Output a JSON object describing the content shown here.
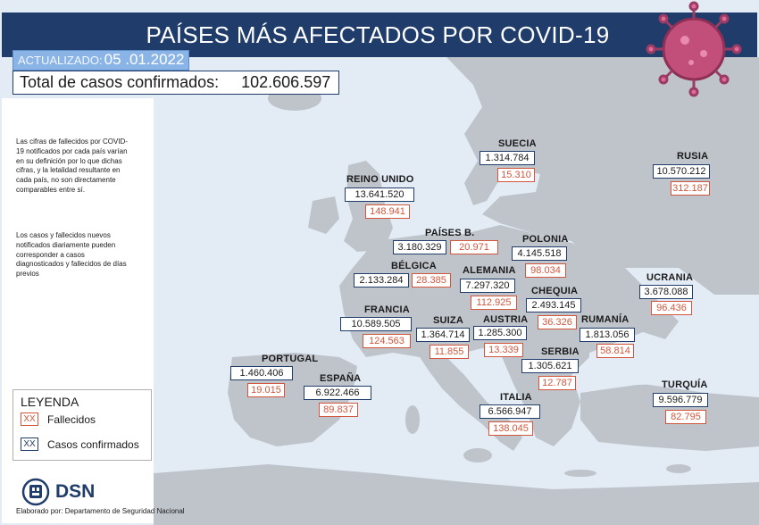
{
  "header": {
    "title": "PAÍSES MÁS AFECTADOS POR COVID-19",
    "updated_label": "ACTUALIZADO:",
    "updated_date": "05 .01.2022",
    "total_label": "Total de casos confirmados:",
    "total_value": "102.606.597"
  },
  "notes": {
    "note1": "Las cifras de fallecidos por COVID-19 notificados por cada país varían en su definición por lo que dichas cifras, y la letalidad resultante en cada país, no son directamente comparables entre sí.",
    "note2": "Los casos y fallecidos nuevos notificados diariamente pueden corresponder a casos diagnosticados y fallecidos de días previos"
  },
  "legend": {
    "title": "LEYENDA",
    "swatch_text": "XX",
    "deaths_label": "Fallecidos",
    "cases_label": "Casos confirmados"
  },
  "footer": {
    "logo_text": "DSN",
    "credit": "Elaborado por: Departamento de Seguridad Nacional"
  },
  "colors": {
    "header_bg": "#1f3c6b",
    "deaths": "#d2563c",
    "cases_border": "#1f3c6b",
    "sea": "#e3ebf5",
    "land": "#bfc4cb",
    "virus": "#c24f7a"
  },
  "countries": {
    "reino_unido": {
      "name": "REINO UNIDO",
      "cases": "13.641.520",
      "deaths": "148.941"
    },
    "suecia": {
      "name": "SUECIA",
      "cases": "1.314.784",
      "deaths": "15.310"
    },
    "rusia": {
      "name": "RUSIA",
      "cases": "10.570.212",
      "deaths": "312.187"
    },
    "paises_bajos": {
      "name": "PAÍSES B.",
      "cases": "3.180.329",
      "deaths": "20.971"
    },
    "polonia": {
      "name": "POLONIA",
      "cases": "4.145.518",
      "deaths": "98.034"
    },
    "belgica": {
      "name": "BÉLGICA",
      "cases": "2.133.284",
      "deaths": "28.385"
    },
    "alemania": {
      "name": "ALEMANIA",
      "cases": "7.297.320",
      "deaths": "112.925"
    },
    "chequia": {
      "name": "CHEQUIA",
      "cases": "2.493.145",
      "deaths": "36.326"
    },
    "ucrania": {
      "name": "UCRANIA",
      "cases": "3.678.088",
      "deaths": "96.436"
    },
    "francia": {
      "name": "FRANCIA",
      "cases": "10.589.505",
      "deaths": "124.563"
    },
    "suiza": {
      "name": "SUIZA",
      "cases": "1.364.714",
      "deaths": "11.855"
    },
    "austria": {
      "name": "AUSTRIA",
      "cases": "1.285.300",
      "deaths": "13.339"
    },
    "rumania": {
      "name": "RUMANÍA",
      "cases": "1.813.056",
      "deaths": "58.814"
    },
    "portugal": {
      "name": "PORTUGAL",
      "cases": "1.460.406",
      "deaths": "19.015"
    },
    "espana": {
      "name": "ESPAÑA",
      "cases": "6.922.466",
      "deaths": "89.837"
    },
    "serbia": {
      "name": "SERBIA",
      "cases": "1.305.621",
      "deaths": "12.787"
    },
    "italia": {
      "name": "ITALIA",
      "cases": "6.566.947",
      "deaths": "138.045"
    },
    "turquia": {
      "name": "TURQUÍA",
      "cases": "9.596.779",
      "deaths": "82.795"
    }
  }
}
